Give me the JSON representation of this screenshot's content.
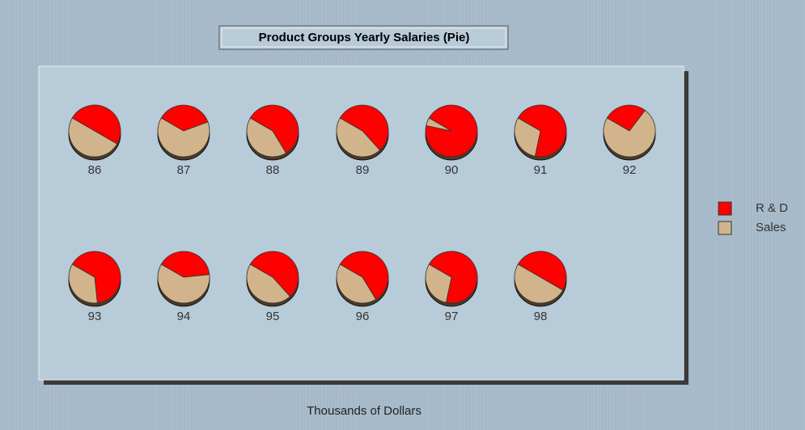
{
  "chart_data": {
    "type": "pie",
    "title": "Product Groups Yearly Salaries (Pie)",
    "x_label": "Thousands of Dollars",
    "categories": [
      "86",
      "87",
      "88",
      "89",
      "90",
      "91",
      "92",
      "93",
      "94",
      "95",
      "96",
      "97",
      "98"
    ],
    "series": [
      {
        "name": "R & D",
        "color": "#ff0000",
        "values": [
          50,
          36,
          58,
          55,
          95,
          70,
          27,
          65,
          40,
          55,
          58,
          70,
          50
        ]
      },
      {
        "name": "Sales",
        "color": "#d2b48c",
        "values": [
          50,
          64,
          42,
          45,
          5,
          30,
          73,
          35,
          60,
          45,
          42,
          30,
          50
        ]
      }
    ],
    "legend": "right"
  }
}
